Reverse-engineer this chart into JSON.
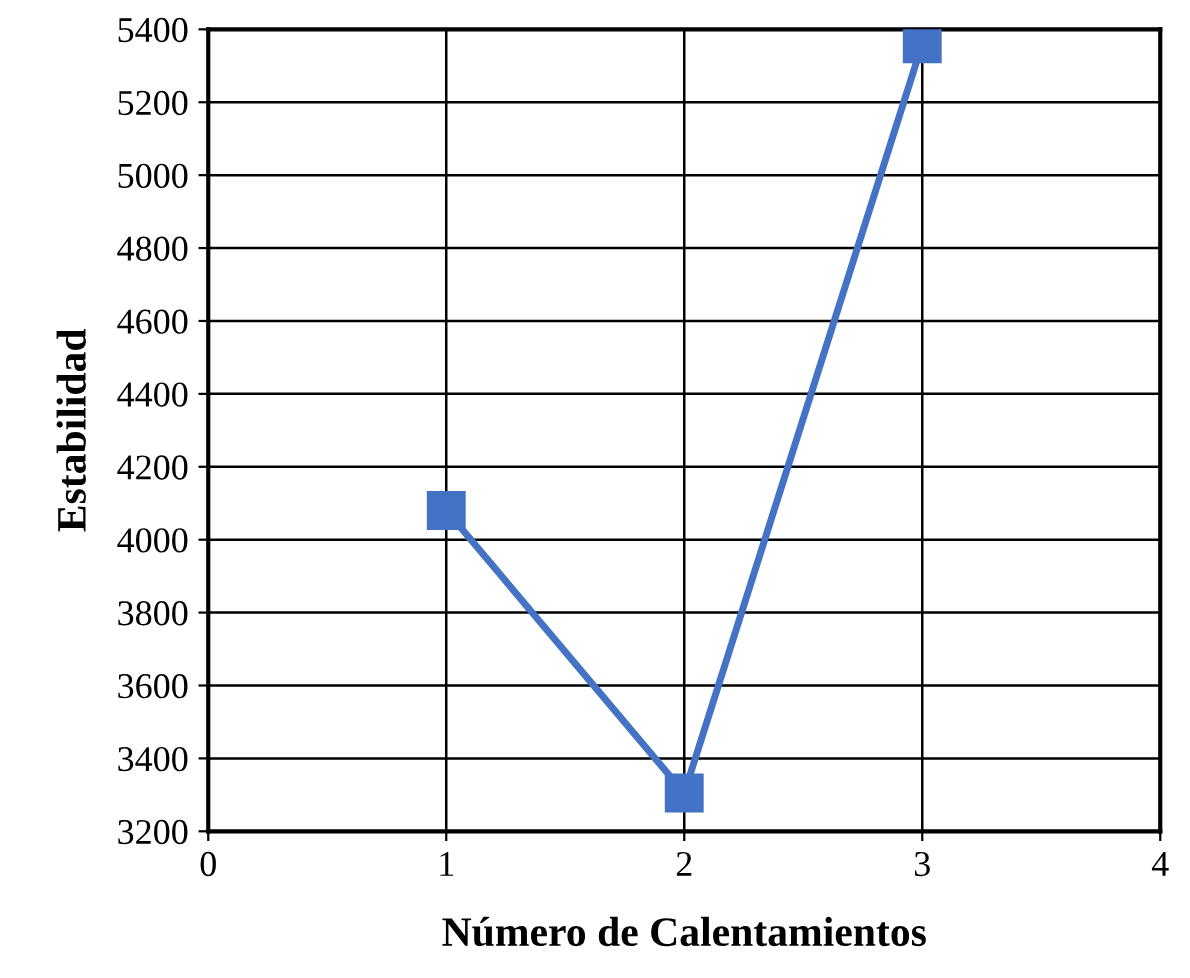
{
  "chart_data": {
    "type": "line",
    "xlabel": "Número de Calentamientos",
    "ylabel": "Estabilidad",
    "x": [
      1,
      2,
      3
    ],
    "series": [
      {
        "color": "#4472c4",
        "values": [
          4080,
          3305,
          5360
        ]
      }
    ],
    "xlim": [
      0,
      4
    ],
    "xticks": [
      0,
      1,
      2,
      3,
      4
    ],
    "ylim": [
      3200,
      5400
    ],
    "yticks": [
      3200,
      3400,
      3600,
      3800,
      4000,
      4200,
      4400,
      4600,
      4800,
      5000,
      5200,
      5400
    ],
    "grid": true,
    "marker": "square",
    "line_style": "solid"
  }
}
